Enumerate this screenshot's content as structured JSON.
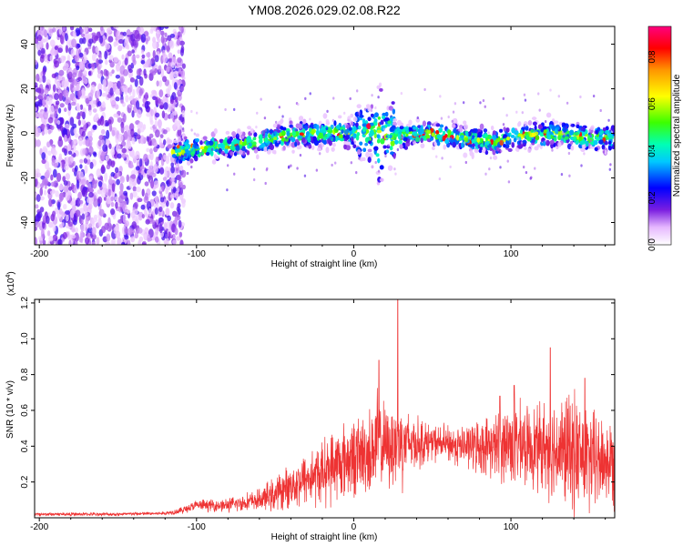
{
  "title": "YM08.2026.029.02.08.R22",
  "chart_data": [
    {
      "type": "heatmap",
      "xlabel": "Height of straight line (km)",
      "ylabel": "Frequency (Hz)",
      "xlim": [
        -203,
        166
      ],
      "ylim": [
        -50,
        48
      ],
      "x_ticks": [
        -200,
        -100,
        0,
        100
      ],
      "y_ticks": [
        -40,
        -20,
        0,
        20,
        40
      ],
      "colorbar": {
        "label": "Normalized spectral amplitude",
        "range": [
          0,
          0.93
        ],
        "ticks": [
          0.0,
          0.2,
          0.4,
          0.6,
          0.8
        ]
      },
      "features": {
        "broadband_noise_x_range": [
          -203,
          -108
        ],
        "signal_band_x_range": [
          -115,
          166
        ],
        "signal_center_track": [
          [
            -110,
            -8
          ],
          [
            -90,
            -6
          ],
          [
            -70,
            -5
          ],
          [
            -50,
            -2
          ],
          [
            -30,
            0
          ],
          [
            -10,
            0
          ],
          [
            10,
            0
          ],
          [
            30,
            -1
          ],
          [
            50,
            0
          ],
          [
            70,
            -2
          ],
          [
            90,
            -4
          ],
          [
            110,
            -1
          ],
          [
            130,
            0
          ],
          [
            150,
            -2
          ],
          [
            166,
            -2
          ]
        ]
      },
      "grid": false
    },
    {
      "type": "line",
      "xlabel": "Height of straight line (km)",
      "ylabel": "SNR (10 * v/v)",
      "y_multiplier": "(x10",
      "y_multiplier_exponent": "4",
      "y_multiplier_close": ")",
      "xlim": [
        -203,
        166
      ],
      "ylim": [
        0.0,
        1.22
      ],
      "x_ticks": [
        -200,
        -100,
        0,
        100
      ],
      "y_ticks": [
        0.2,
        0.4,
        0.6,
        0.8,
        1.0,
        1.2
      ],
      "series": [
        {
          "color": "#ee3333",
          "envelope": {
            "x": [
              -203,
              -150,
              -120,
              -110,
              -100,
              -80,
              -60,
              -50,
              -40,
              -30,
              -20,
              -15,
              -10,
              -5,
              0,
              10,
              15,
              20,
              25,
              28,
              35,
              50,
              70,
              90,
              100,
              110,
              120,
              130,
              140,
              150,
              160,
              166
            ],
            "mean": [
              0.02,
              0.02,
              0.025,
              0.04,
              0.07,
              0.07,
              0.1,
              0.13,
              0.18,
              0.22,
              0.25,
              0.28,
              0.3,
              0.32,
              0.34,
              0.36,
              0.42,
              0.4,
              0.4,
              0.42,
              0.42,
              0.42,
              0.4,
              0.4,
              0.42,
              0.4,
              0.4,
              0.38,
              0.36,
              0.32,
              0.32,
              0.3
            ],
            "spread": [
              0.01,
              0.01,
              0.01,
              0.02,
              0.03,
              0.04,
              0.06,
              0.1,
              0.12,
              0.16,
              0.18,
              0.2,
              0.22,
              0.22,
              0.22,
              0.25,
              0.3,
              0.22,
              0.25,
              0.3,
              0.18,
              0.1,
              0.12,
              0.18,
              0.25,
              0.22,
              0.25,
              0.3,
              0.35,
              0.3,
              0.25,
              0.25
            ]
          },
          "peaks": [
            [
              28,
              1.22
            ],
            [
              16,
              0.88
            ],
            [
              125,
              0.95
            ],
            [
              147,
              0.78
            ],
            [
              102,
              0.74
            ],
            [
              93,
              0.68
            ]
          ]
        }
      ],
      "grid": false
    }
  ]
}
